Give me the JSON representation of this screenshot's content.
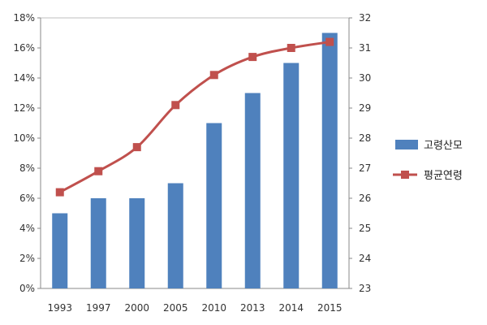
{
  "chart_data": {
    "type": "bar+line",
    "categories": [
      "1993",
      "1997",
      "2000",
      "2005",
      "2010",
      "2013",
      "2014",
      "2015"
    ],
    "y_left": {
      "min": 0,
      "max": 18,
      "step": 2,
      "unit": "%",
      "tick_labels": [
        "0%",
        "2%",
        "4%",
        "6%",
        "8%",
        "10%",
        "12%",
        "14%",
        "16%",
        "18%"
      ]
    },
    "y_right": {
      "min": 23,
      "max": 32,
      "step": 1,
      "tick_labels": [
        "23",
        "24",
        "25",
        "26",
        "27",
        "28",
        "29",
        "30",
        "31",
        "32"
      ]
    },
    "series": [
      {
        "name": "고령산모",
        "kind": "bar",
        "axis": "left",
        "color": "#4F81BD",
        "values": [
          5,
          6,
          6,
          7,
          11,
          13,
          15,
          17
        ]
      },
      {
        "name": "평균연령",
        "kind": "line",
        "axis": "right",
        "color": "#C0504D",
        "values": [
          26.2,
          26.9,
          27.7,
          29.1,
          30.1,
          30.7,
          31.0,
          31.2
        ]
      }
    ],
    "legend_position": "right",
    "grid": false
  }
}
